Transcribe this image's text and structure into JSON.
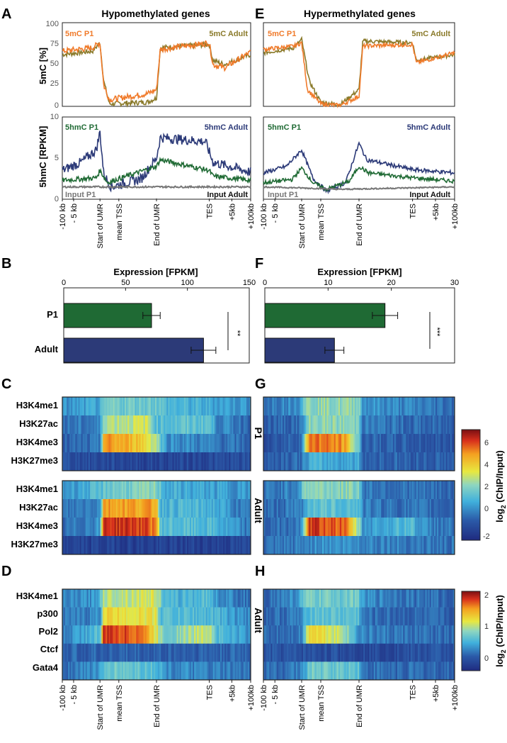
{
  "panels": {
    "A": {
      "letter": "A",
      "title": "Hypomethylated genes"
    },
    "E": {
      "letter": "E",
      "title": "Hypermethylated genes"
    },
    "B": {
      "letter": "B",
      "axis_title": "Expression [FPKM]",
      "ticks": [
        "0",
        "50",
        "100",
        "150"
      ],
      "xmax": 150,
      "sig": "**"
    },
    "F": {
      "letter": "F",
      "axis_title": "Expression [FPKM]",
      "ticks": [
        "0",
        "10",
        "20",
        "30"
      ],
      "xmax": 30,
      "sig": "***"
    },
    "C": {
      "letter": "C"
    },
    "G": {
      "letter": "G"
    },
    "D": {
      "letter": "D"
    },
    "H": {
      "letter": "H"
    }
  },
  "labels": {
    "mc_ylabel": "5mC [%]",
    "hmc_ylabel": "5hmC [RPKM]",
    "mc_ticks": [
      "100",
      "75",
      "50",
      "25",
      "0"
    ],
    "hmc_ticks": [
      "10",
      "5",
      "0"
    ],
    "mc_p1": "5mC P1",
    "mc_adult": "5mC Adult",
    "hmc_p1": "5hmC P1",
    "hmc_adult": "5hmC Adult",
    "input_p1": "Input P1",
    "input_adult": "Input Adult",
    "xticks": [
      "-100 kb",
      "- 5 kb",
      "Start of UMR",
      "mean TSS",
      "End of UMR",
      "TES",
      "+5kb",
      "+100kb"
    ],
    "group_p1": "P1",
    "group_adult": "Adult",
    "marks_top": [
      "H3K4me1",
      "H3K27ac",
      "H3K4me3",
      "H3K27me3"
    ],
    "marks_bottom": [
      "H3K4me1",
      "p300",
      "Pol2",
      "Ctcf",
      "Gata4"
    ],
    "cbar_title": "log",
    "cbar_sub": "2",
    "cbar_title_rest": " (ChIP/Input)",
    "cbar1_ticks": [
      "6",
      "4",
      "2",
      "0",
      "-2"
    ],
    "cbar2_ticks": [
      "2",
      "1",
      "0"
    ]
  },
  "chart_data": [
    {
      "type": "bar",
      "panel": "B",
      "title": "Expression [FPKM]",
      "categories": [
        "P1",
        "Adult"
      ],
      "values": [
        71,
        113
      ],
      "errors": [
        7,
        10
      ],
      "xlim": [
        0,
        150
      ],
      "colors": [
        "#1f6a34",
        "#2c3a78"
      ],
      "annotation": "**"
    },
    {
      "type": "bar",
      "panel": "F",
      "title": "Expression [FPKM]",
      "categories": [
        "P1",
        "Adult"
      ],
      "values": [
        19,
        11
      ],
      "errors": [
        2,
        1.5
      ],
      "xlim": [
        0,
        30
      ],
      "colors": [
        "#1f6a34",
        "#2c3a78"
      ],
      "annotation": "***"
    },
    {
      "type": "line",
      "panel": "A-top",
      "ylabel": "5mC [%]",
      "ylim": [
        0,
        100
      ],
      "series": [
        {
          "name": "5mC P1",
          "color": "#f07a2a"
        },
        {
          "name": "5mC Adult",
          "color": "#8a7a2a"
        }
      ]
    },
    {
      "type": "line",
      "panel": "A-bottom",
      "ylabel": "5hmC [RPKM]",
      "ylim": [
        0,
        10
      ],
      "series": [
        {
          "name": "5hmC P1",
          "color": "#1f6a34"
        },
        {
          "name": "5hmC Adult",
          "color": "#2c3a78"
        },
        {
          "name": "Input P1",
          "color": "#777777"
        },
        {
          "name": "Input Adult",
          "color": "#333333"
        }
      ]
    },
    {
      "type": "heatmap",
      "panel": "C/G",
      "colorbar_range": [
        -2.5,
        7.5
      ]
    },
    {
      "type": "heatmap",
      "panel": "D/H",
      "colorbar_range": [
        -0.6,
        2.2
      ]
    }
  ],
  "colors": {
    "p1_mc": "#f07a2a",
    "adult_mc": "#8a7a2a",
    "p1_hmc": "#1f6a34",
    "adult_hmc": "#2c3a78",
    "input": "#777777"
  }
}
